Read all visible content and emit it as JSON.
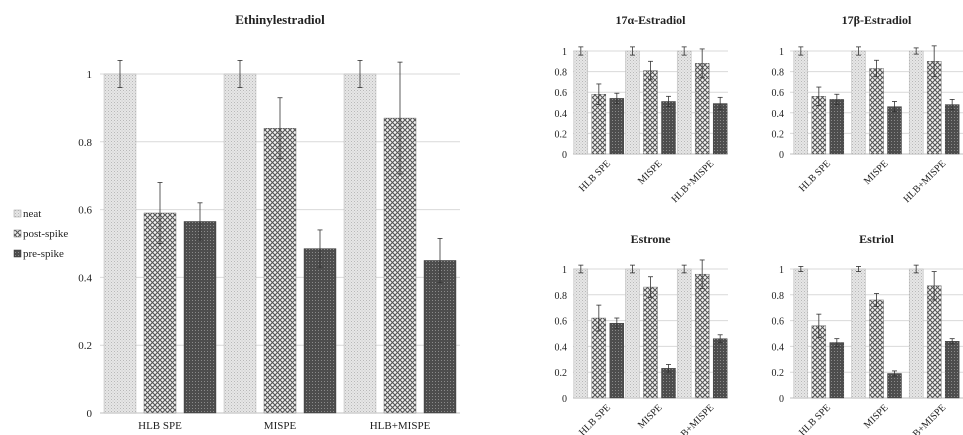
{
  "legend": {
    "items": [
      {
        "label": "neat",
        "pattern": "neat"
      },
      {
        "label": "post-spike",
        "pattern": "post"
      },
      {
        "label": "pre-spike",
        "pattern": "pre"
      }
    ]
  },
  "colors": {
    "neat_fill": "#e3e3e3",
    "post_fill": "#8c8c8c",
    "pre_fill": "#5a5a5a",
    "grid": "#d9d9d9",
    "error_bar": "#333333"
  },
  "chart_data": [
    {
      "type": "bar",
      "title": "Ethinylestradiol",
      "categories": [
        "HLB SPE",
        "MISPE",
        "HLB+MISPE"
      ],
      "ylim": [
        0,
        1
      ],
      "yticks": [
        "0",
        "0.2",
        "0.4",
        "0.6",
        "0.8",
        "1"
      ],
      "grid": true,
      "legend": "left",
      "series": [
        {
          "name": "neat",
          "values": [
            1.0,
            1.0,
            1.0
          ],
          "errors": [
            0.04,
            0.04,
            0.04
          ]
        },
        {
          "name": "post-spike",
          "values": [
            0.59,
            0.84,
            0.87
          ],
          "errors": [
            0.09,
            0.09,
            0.165
          ]
        },
        {
          "name": "pre-spike",
          "values": [
            0.565,
            0.485,
            0.45
          ],
          "errors": [
            0.055,
            0.055,
            0.065
          ]
        }
      ]
    },
    {
      "type": "bar",
      "title": "17α-Estradiol",
      "categories": [
        "HLB SPE",
        "MISPE",
        "HLB+MISPE"
      ],
      "ylim": [
        0,
        1
      ],
      "yticks": [
        "0",
        "0.2",
        "0.4",
        "0.6",
        "0.8",
        "1"
      ],
      "grid": true,
      "series": [
        {
          "name": "neat",
          "values": [
            1.0,
            1.0,
            1.0
          ],
          "errors": [
            0.04,
            0.04,
            0.04
          ]
        },
        {
          "name": "post-spike",
          "values": [
            0.58,
            0.81,
            0.88
          ],
          "errors": [
            0.1,
            0.09,
            0.14
          ]
        },
        {
          "name": "pre-spike",
          "values": [
            0.54,
            0.51,
            0.49
          ],
          "errors": [
            0.05,
            0.05,
            0.06
          ]
        }
      ]
    },
    {
      "type": "bar",
      "title": "17β-Estradiol",
      "categories": [
        "HLB SPE",
        "MISPE",
        "HLB+MISPE"
      ],
      "ylim": [
        0,
        1
      ],
      "yticks": [
        "0",
        "0.2",
        "0.4",
        "0.6",
        "0.8",
        "1"
      ],
      "grid": true,
      "series": [
        {
          "name": "neat",
          "values": [
            1.0,
            1.0,
            1.0
          ],
          "errors": [
            0.04,
            0.04,
            0.03
          ]
        },
        {
          "name": "post-spike",
          "values": [
            0.56,
            0.83,
            0.9
          ],
          "errors": [
            0.09,
            0.08,
            0.15
          ]
        },
        {
          "name": "pre-spike",
          "values": [
            0.53,
            0.46,
            0.48
          ],
          "errors": [
            0.05,
            0.05,
            0.05
          ]
        }
      ]
    },
    {
      "type": "bar",
      "title": "Estrone",
      "categories": [
        "HLB SPE",
        "MISPE",
        "HLB+MISPE"
      ],
      "ylim": [
        0,
        1
      ],
      "yticks": [
        "0",
        "0.2",
        "0.4",
        "0.6",
        "0.8",
        "1"
      ],
      "grid": true,
      "series": [
        {
          "name": "neat",
          "values": [
            1.0,
            1.0,
            1.0
          ],
          "errors": [
            0.03,
            0.03,
            0.03
          ]
        },
        {
          "name": "post-spike",
          "values": [
            0.62,
            0.86,
            0.96
          ],
          "errors": [
            0.1,
            0.08,
            0.11
          ]
        },
        {
          "name": "pre-spike",
          "values": [
            0.58,
            0.23,
            0.46
          ],
          "errors": [
            0.04,
            0.03,
            0.03
          ]
        }
      ]
    },
    {
      "type": "bar",
      "title": "Estriol",
      "categories": [
        "HLB SPE",
        "MISPE",
        "HLB+MISPE"
      ],
      "ylim": [
        0,
        1
      ],
      "yticks": [
        "0",
        "0.2",
        "0.4",
        "0.6",
        "0.8",
        "1"
      ],
      "grid": true,
      "series": [
        {
          "name": "neat",
          "values": [
            1.0,
            1.0,
            1.0
          ],
          "errors": [
            0.02,
            0.02,
            0.03
          ]
        },
        {
          "name": "post-spike",
          "values": [
            0.56,
            0.76,
            0.87
          ],
          "errors": [
            0.09,
            0.05,
            0.11
          ]
        },
        {
          "name": "pre-spike",
          "values": [
            0.43,
            0.19,
            0.44
          ],
          "errors": [
            0.03,
            0.02,
            0.02
          ]
        }
      ]
    }
  ]
}
